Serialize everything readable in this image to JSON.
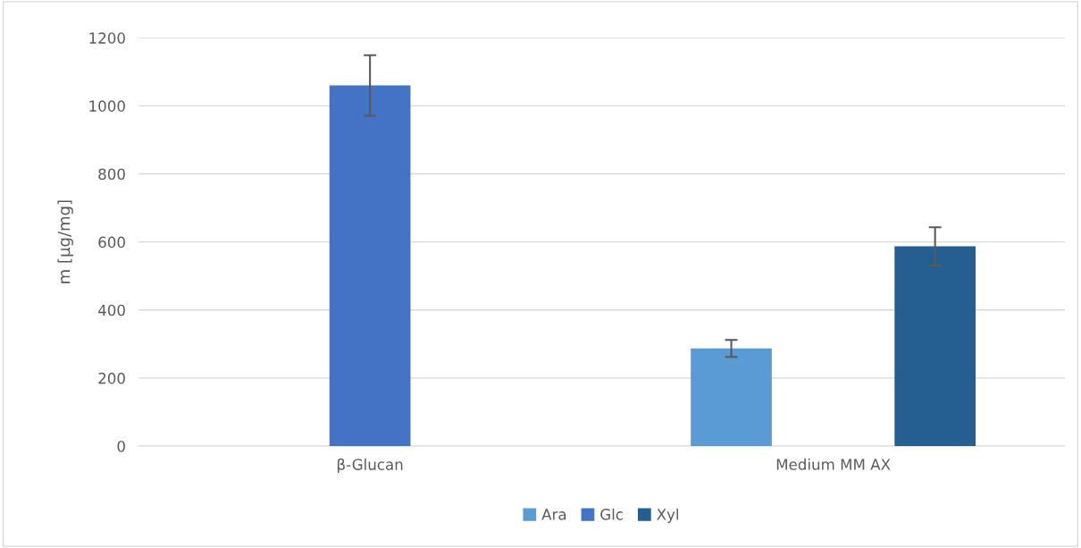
{
  "chart_data": {
    "type": "bar",
    "ylabel": "m [µg/mg]",
    "categories": [
      "β-Glucan",
      "Medium MM AX"
    ],
    "series": [
      {
        "name": "Ara",
        "color": "#5b9bd5",
        "values": [
          null,
          287
        ],
        "errors": [
          null,
          25
        ]
      },
      {
        "name": "Glc",
        "color": "#4472c4",
        "values": [
          1060,
          null
        ],
        "errors": [
          89,
          null
        ]
      },
      {
        "name": "Xyl",
        "color": "#255e91",
        "values": [
          null,
          587
        ],
        "errors": [
          null,
          56
        ]
      }
    ],
    "ylim": [
      0,
      1200
    ],
    "yticks": [
      0,
      200,
      400,
      600,
      800,
      1000,
      1200
    ],
    "grid": "y",
    "legend": "bottom"
  }
}
